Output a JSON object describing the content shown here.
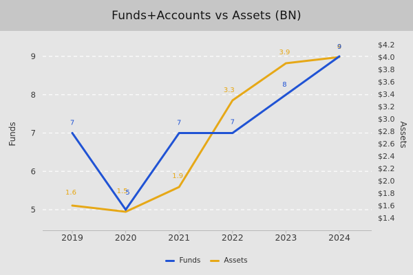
{
  "title_bar": {
    "title": "Funds+Accounts vs Assets (BN)"
  },
  "colors": {
    "funds_line": "#2053d4",
    "assets_line": "#e6a817",
    "title_band_bg": "#c6c6c6",
    "figure_bg": "#e5e5e5",
    "gridline": "#ffffff",
    "axis_line": "#b9b9b9",
    "tick_text": "#3a3a3a"
  },
  "chart_data": {
    "type": "line",
    "title": "Funds+Accounts vs Assets (BN)",
    "categories": [
      "2019",
      "2020",
      "2021",
      "2022",
      "2023",
      "2024"
    ],
    "series": [
      {
        "name": "Funds",
        "axis": "left",
        "color": "#2053d4",
        "values": [
          7,
          5,
          7,
          7,
          8,
          9
        ],
        "labels": [
          "7",
          "5",
          "7",
          "7",
          "8",
          "9"
        ],
        "label_dx": [
          0,
          3,
          0,
          0,
          -2,
          0
        ],
        "label_dy": [
          -12,
          -22,
          -12,
          -13,
          -12,
          -11
        ]
      },
      {
        "name": "Assets",
        "axis": "right",
        "color": "#e6a817",
        "values": [
          1.6,
          1.5,
          1.9,
          3.3,
          3.9,
          4.0
        ],
        "labels": [
          "1.6",
          "1.5",
          "1.9",
          "3.3",
          "3.9",
          "4"
        ],
        "label_dx": [
          -2,
          -5,
          -2,
          -5,
          -2,
          0
        ],
        "label_dy": [
          -16,
          -27,
          -13,
          -12,
          -13,
          -12
        ]
      }
    ],
    "left_axis": {
      "label": "Funds",
      "ticks": [
        9,
        8,
        7,
        6,
        5
      ],
      "range": [
        5,
        9
      ]
    },
    "right_axis": {
      "label": "Assets",
      "prefix": "$",
      "ticks": [
        4.2,
        4.0,
        3.8,
        3.6,
        3.4,
        3.2,
        3.0,
        2.8,
        2.6,
        2.4,
        2.2,
        2.0,
        1.8,
        1.6,
        1.4
      ],
      "range": [
        1.4,
        4.2
      ]
    },
    "grid": true,
    "legend_position": "bottom",
    "legend": [
      {
        "label": "Funds",
        "color": "#2053d4"
      },
      {
        "label": "Assets",
        "color": "#e6a817"
      }
    ]
  }
}
